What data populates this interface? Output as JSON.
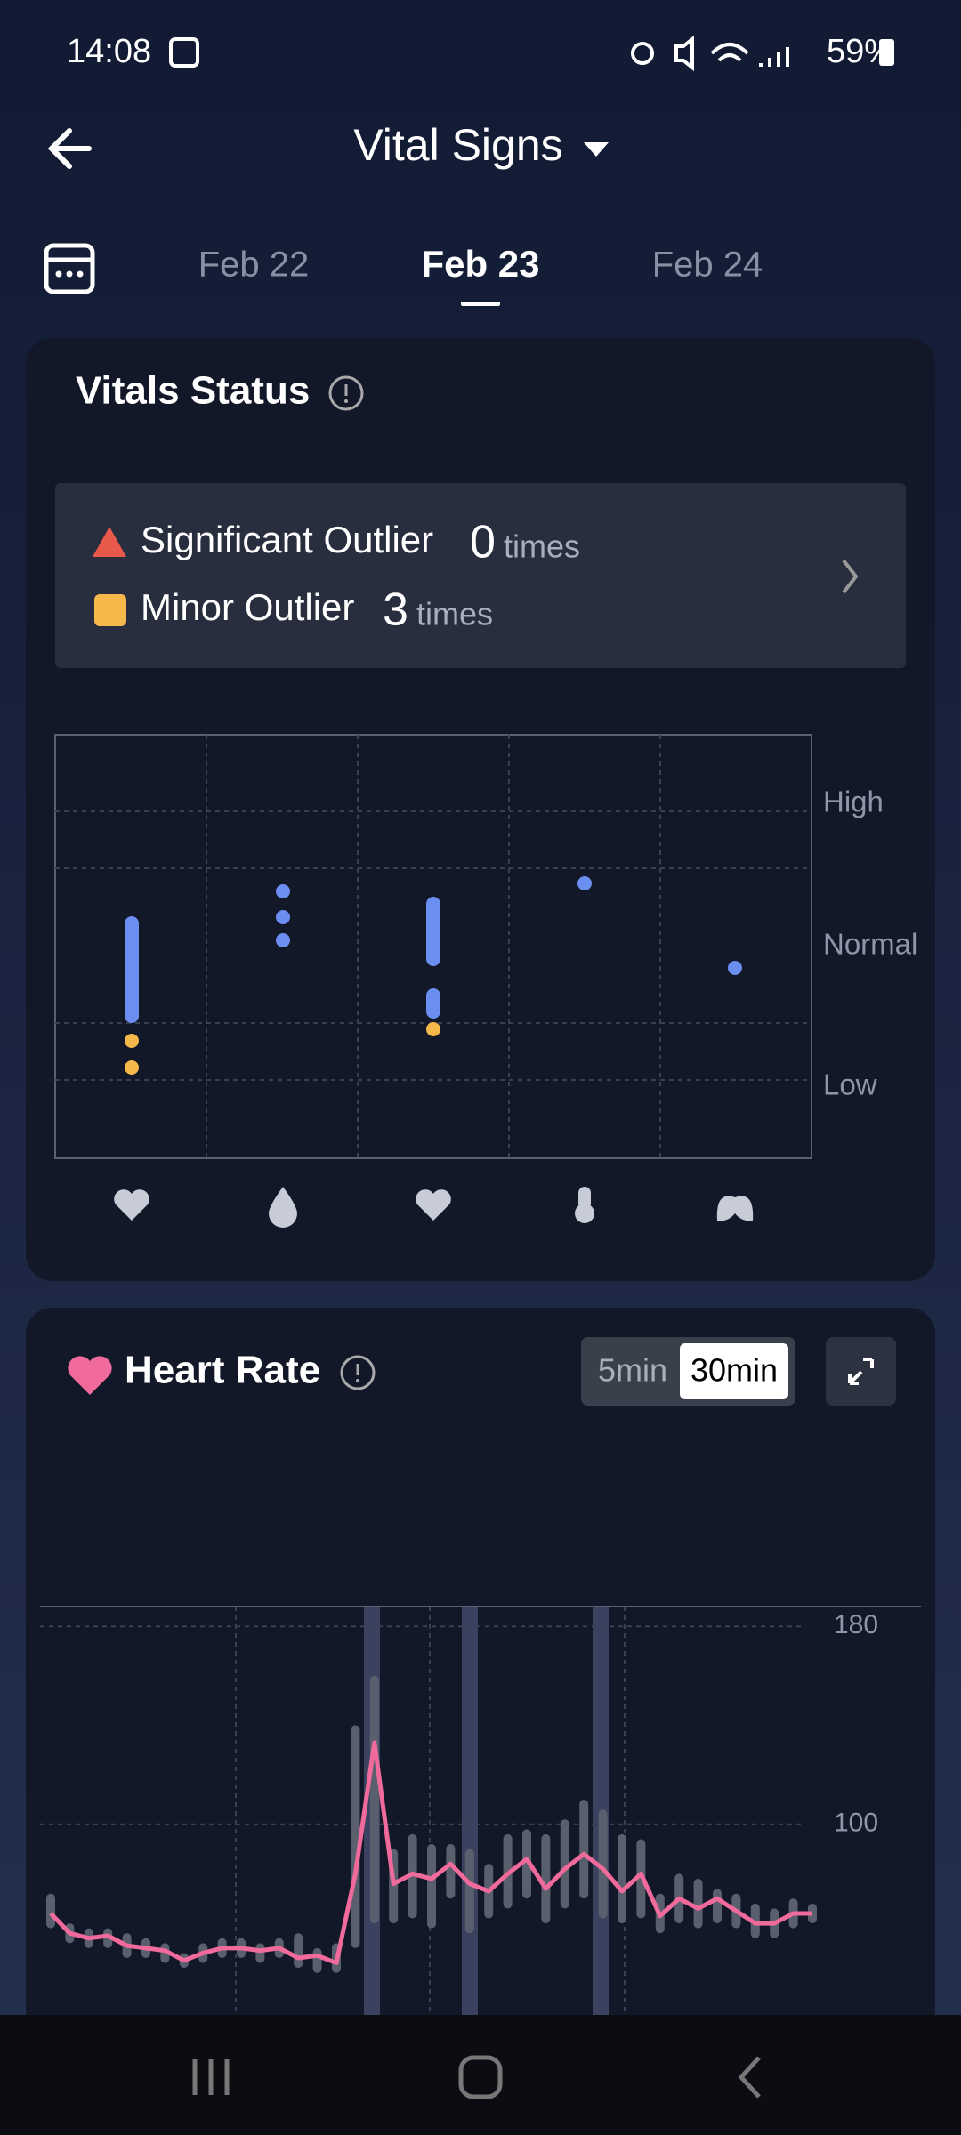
{
  "status_bar": {
    "time": "14:08",
    "battery": "59%"
  },
  "header": {
    "title": "Vital Signs"
  },
  "dates": [
    "Feb 22",
    "Feb 23",
    "Feb 24"
  ],
  "vitals_status": {
    "title": "Vitals Status",
    "significant": {
      "label": "Significant Outlier",
      "count": 0,
      "unit": "times"
    },
    "minor": {
      "label": "Minor Outlier",
      "count": 3,
      "unit": "times"
    },
    "levels": [
      "High",
      "Normal",
      "Low"
    ]
  },
  "heart_rate": {
    "title": "Heart Rate",
    "toggle": [
      "5min",
      "30min"
    ],
    "chart": {
      "type": "line",
      "color": "#f06b9c",
      "values": [
        64,
        56,
        54,
        55,
        51,
        50,
        49,
        45,
        48,
        50,
        50,
        49,
        50,
        46,
        47,
        44,
        80,
        133,
        76,
        80,
        78,
        84,
        76,
        73,
        80,
        86,
        74,
        82,
        88,
        82,
        73,
        80,
        63,
        70,
        66,
        70,
        65,
        60,
        60,
        64,
        64
      ],
      "ranges": [
        [
          58,
          72
        ],
        [
          52,
          60
        ],
        [
          50,
          58
        ],
        [
          50,
          58
        ],
        [
          46,
          56
        ],
        [
          46,
          54
        ],
        [
          44,
          52
        ],
        [
          42,
          48
        ],
        [
          44,
          52
        ],
        [
          46,
          54
        ],
        [
          46,
          54
        ],
        [
          44,
          52
        ],
        [
          46,
          54
        ],
        [
          42,
          56
        ],
        [
          40,
          50
        ],
        [
          40,
          52
        ],
        [
          50,
          140
        ],
        [
          60,
          160
        ],
        [
          60,
          90
        ],
        [
          62,
          96
        ],
        [
          58,
          92
        ],
        [
          70,
          92
        ],
        [
          56,
          90
        ],
        [
          62,
          84
        ],
        [
          66,
          96
        ],
        [
          70,
          98
        ],
        [
          60,
          96
        ],
        [
          66,
          102
        ],
        [
          70,
          110
        ],
        [
          62,
          106
        ],
        [
          60,
          96
        ],
        [
          62,
          94
        ],
        [
          56,
          72
        ],
        [
          60,
          80
        ],
        [
          58,
          78
        ],
        [
          60,
          74
        ],
        [
          58,
          72
        ],
        [
          54,
          68
        ],
        [
          54,
          66
        ],
        [
          58,
          70
        ],
        [
          60,
          68
        ]
      ],
      "ylim": [
        23,
        188
      ],
      "yticks": [
        100,
        180
      ]
    }
  }
}
